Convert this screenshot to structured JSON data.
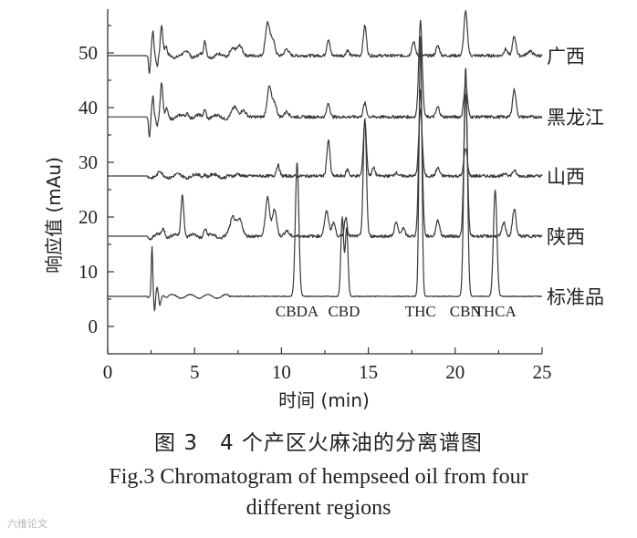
{
  "chart_data": {
    "type": "line",
    "xlabel": "时间 (min)",
    "ylabel": "响应值 (mAu)",
    "xlim": [
      0,
      25
    ],
    "ylim": [
      -5,
      58
    ],
    "xticks": [
      0,
      5,
      10,
      15,
      20,
      25
    ],
    "yticks": [
      0,
      10,
      20,
      30,
      40,
      50
    ],
    "grid": false,
    "series": [
      {
        "name": "广西",
        "baseline": 49.5,
        "peaks": [
          [
            2.4,
            -3.5,
            0.05
          ],
          [
            2.6,
            4.5,
            0.06
          ],
          [
            2.85,
            -1.5,
            0.05
          ],
          [
            3.1,
            5.5,
            0.07
          ],
          [
            3.35,
            1.5,
            0.06
          ],
          [
            4.6,
            0.8,
            0.1
          ],
          [
            5.6,
            2.5,
            0.07
          ],
          [
            7.2,
            1.2,
            0.15
          ],
          [
            7.6,
            1.8,
            0.15
          ],
          [
            9.2,
            6,
            0.12
          ],
          [
            9.5,
            3,
            0.12
          ],
          [
            10.3,
            1.2,
            0.12
          ],
          [
            12.7,
            3,
            0.09
          ],
          [
            13.8,
            1,
            0.08
          ],
          [
            14.8,
            5.5,
            0.09
          ],
          [
            17.6,
            2.5,
            0.1
          ],
          [
            19.0,
            1.8,
            0.1
          ],
          [
            20.6,
            8,
            0.1
          ],
          [
            22.9,
            1.2,
            0.1
          ],
          [
            23.4,
            3.5,
            0.1
          ],
          [
            24.3,
            0.8,
            0.15
          ]
        ]
      },
      {
        "name": "黑龙江",
        "baseline": 38.3,
        "peaks": [
          [
            2.4,
            -4,
            0.05
          ],
          [
            2.6,
            4,
            0.06
          ],
          [
            2.85,
            -1.5,
            0.05
          ],
          [
            3.1,
            6,
            0.07
          ],
          [
            3.4,
            1.5,
            0.06
          ],
          [
            4.6,
            0.8,
            0.1
          ],
          [
            5.6,
            1.5,
            0.07
          ],
          [
            7.3,
            1.8,
            0.15
          ],
          [
            7.8,
            1.2,
            0.15
          ],
          [
            9.3,
            5.5,
            0.12
          ],
          [
            9.6,
            2.5,
            0.12
          ],
          [
            10.3,
            1,
            0.12
          ],
          [
            12.7,
            2.5,
            0.09
          ],
          [
            14.8,
            2.5,
            0.09
          ],
          [
            18.0,
            17.5,
            0.1
          ],
          [
            19.0,
            1.8,
            0.1
          ],
          [
            20.6,
            6,
            0.1
          ],
          [
            23.4,
            5,
            0.1
          ]
        ]
      },
      {
        "name": "山西",
        "baseline": 27.5,
        "peaks": [
          [
            3.0,
            0.6,
            0.08
          ],
          [
            5.6,
            0.6,
            0.08
          ],
          [
            7.5,
            0.4,
            0.1
          ],
          [
            9.8,
            2,
            0.09
          ],
          [
            12.7,
            6.5,
            0.09
          ],
          [
            13.8,
            1.2,
            0.08
          ],
          [
            14.8,
            10,
            0.09
          ],
          [
            15.3,
            1.5,
            0.09
          ],
          [
            16.6,
            0.6,
            0.1
          ],
          [
            18.0,
            12,
            0.1
          ],
          [
            19.0,
            1.5,
            0.1
          ],
          [
            20.6,
            5,
            0.1
          ],
          [
            22.9,
            0.5,
            0.1
          ],
          [
            23.4,
            1,
            0.1
          ]
        ]
      },
      {
        "name": "陕西",
        "baseline": 16.5,
        "peaks": [
          [
            2.5,
            -0.5,
            0.06
          ],
          [
            3.2,
            1.5,
            0.1
          ],
          [
            4.3,
            8,
            0.08
          ],
          [
            5.6,
            1.5,
            0.08
          ],
          [
            7.2,
            3.5,
            0.15
          ],
          [
            7.6,
            3,
            0.15
          ],
          [
            9.2,
            7,
            0.12
          ],
          [
            9.6,
            5,
            0.12
          ],
          [
            10.3,
            1,
            0.12
          ],
          [
            12.6,
            4.5,
            0.12
          ],
          [
            13.0,
            2.5,
            0.1
          ],
          [
            13.7,
            3.5,
            0.08
          ],
          [
            14.8,
            21.5,
            0.09
          ],
          [
            16.6,
            2.5,
            0.1
          ],
          [
            17.0,
            1.5,
            0.1
          ],
          [
            18.0,
            27,
            0.1
          ],
          [
            19.0,
            3,
            0.1
          ],
          [
            20.6,
            26,
            0.1
          ],
          [
            22.8,
            2.5,
            0.1
          ],
          [
            23.4,
            5,
            0.1
          ]
        ]
      },
      {
        "name": "标准品",
        "baseline": 5.5,
        "peaks": [
          [
            2.55,
            9,
            0.04
          ],
          [
            2.7,
            -3,
            0.04
          ],
          [
            2.85,
            1.5,
            0.05
          ],
          [
            3.0,
            -1.5,
            0.05
          ],
          [
            3.2,
            0.5,
            0.06
          ],
          [
            10.9,
            24.5,
            0.1
          ],
          [
            13.5,
            14.5,
            0.08
          ],
          [
            13.75,
            12.5,
            0.08
          ],
          [
            18.0,
            47.5,
            0.08
          ],
          [
            20.6,
            42,
            0.1
          ],
          [
            22.3,
            19.5,
            0.1
          ]
        ]
      }
    ],
    "annotations": [
      "CBDA",
      "CBD",
      "THC",
      "CBN",
      "THCA"
    ],
    "annotation_x": [
      10.9,
      13.6,
      18.0,
      20.6,
      22.3
    ],
    "annotation_y": 1.8
  },
  "caption": {
    "cn": "图 3　4 个产区火麻油的分离谱图",
    "en_line1": "Fig.3    Chromatogram of hempseed oil from four",
    "en_line2": "different regions"
  },
  "watermark": "六维论文"
}
